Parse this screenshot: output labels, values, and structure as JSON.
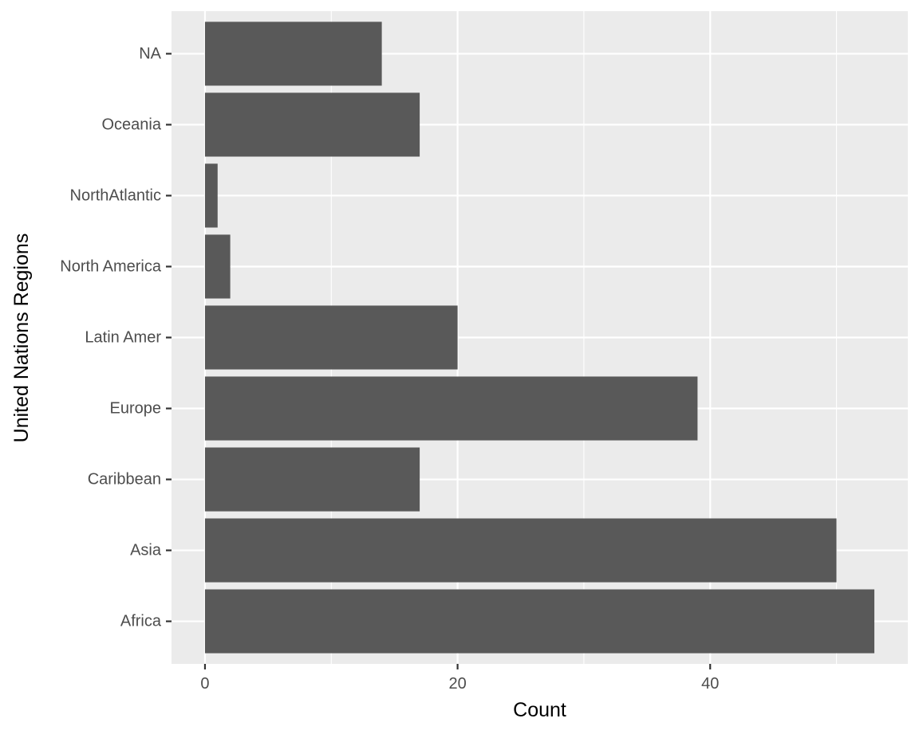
{
  "chart_data": {
    "type": "bar",
    "orientation": "horizontal",
    "categories": [
      "Africa",
      "Asia",
      "Caribbean",
      "Europe",
      "Latin Amer",
      "North America",
      "NorthAtlantic",
      "Oceania",
      "NA"
    ],
    "values": [
      53,
      50,
      17,
      39,
      20,
      2,
      1,
      17,
      14
    ],
    "xlabel": "Count",
    "ylabel": "United Nations Regions",
    "xlim": [
      -2.65,
      55.65
    ],
    "x_ticks": [
      0,
      20,
      40
    ],
    "x_minor_ticks": [
      10,
      30,
      50
    ],
    "grid": true,
    "colors": {
      "bar": "#595959",
      "panel": "#ebebeb",
      "grid": "#ffffff",
      "tick_text": "#4d4d4d",
      "tick_mark": "#333333",
      "title_text": "#000000"
    }
  }
}
